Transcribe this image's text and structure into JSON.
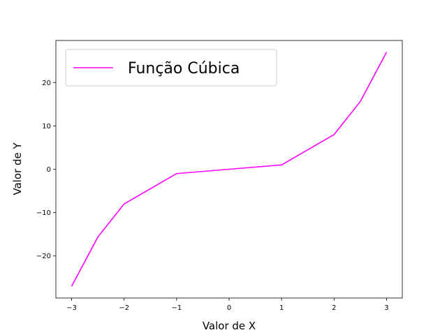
{
  "chart_data": {
    "type": "line",
    "xlabel": "Valor de X",
    "ylabel": "Valor de Y",
    "xlim": [
      -3.3,
      3.3
    ],
    "ylim": [
      -29.7,
      29.7
    ],
    "xticks": [
      -3,
      -2,
      -1,
      0,
      1,
      2,
      3
    ],
    "yticks": [
      -20,
      -10,
      0,
      10,
      20
    ],
    "grid": false,
    "legend_position": "upper-left",
    "series": [
      {
        "name": "Função Cúbica",
        "color": "#ff00ff",
        "x": [
          -3,
          -2.5,
          -2,
          -1,
          0,
          1,
          2,
          2.5,
          3
        ],
        "y": [
          -27,
          -15.625,
          -8,
          -1,
          0,
          1,
          8,
          15.625,
          27
        ]
      }
    ]
  }
}
